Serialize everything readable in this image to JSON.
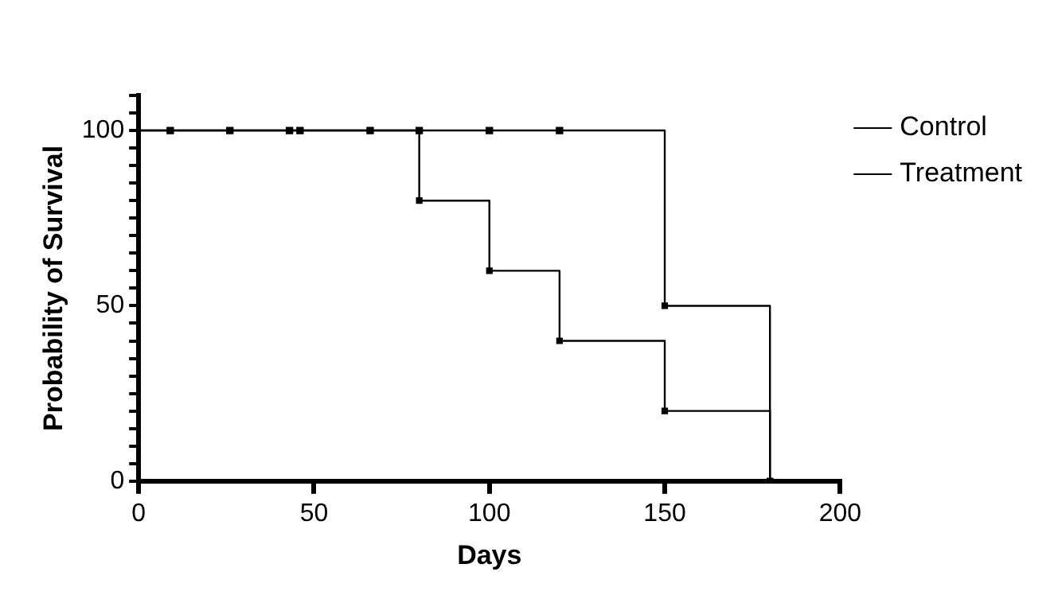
{
  "chart_data": {
    "type": "step",
    "xlabel": "Days",
    "ylabel": "Probability of Survival",
    "series": [
      {
        "name": "Control",
        "color": "#000000",
        "x": [
          0,
          150,
          180
        ],
        "values": [
          100,
          50,
          0
        ]
      },
      {
        "name": "Treatment",
        "color": "#000000",
        "x": [
          0,
          80,
          100,
          120,
          150,
          180
        ],
        "values": [
          100,
          80,
          60,
          40,
          20,
          0
        ]
      },
      {
        "type": "scatter",
        "color": "#000000",
        "x": [
          9,
          26,
          43,
          46,
          66,
          80,
          100,
          120
        ],
        "values": [
          100,
          100,
          100,
          100,
          100,
          100,
          100,
          100
        ]
      }
    ],
    "xlim": [
      0,
      200
    ],
    "xticks": [
      0,
      50,
      100,
      150,
      200
    ],
    "ylim": [
      0,
      110
    ],
    "yticks": [
      0,
      {
        "value": 5,
        "label": null
      },
      {
        "value": 10,
        "label": null
      },
      {
        "value": 15,
        "label": null
      },
      {
        "value": 20,
        "label": null
      },
      {
        "value": 25,
        "label": null
      },
      {
        "value": 30,
        "label": null
      },
      {
        "value": 35,
        "label": null
      },
      {
        "value": 40,
        "label": null
      },
      {
        "value": 45,
        "label": null
      },
      50,
      {
        "value": 55,
        "label": null
      },
      {
        "value": 60,
        "label": null
      },
      {
        "value": 65,
        "label": null
      },
      {
        "value": 70,
        "label": null
      },
      {
        "value": 75,
        "label": null
      },
      {
        "value": 80,
        "label": null
      },
      {
        "value": 85,
        "label": null
      },
      {
        "value": 90,
        "label": null
      },
      {
        "value": 95,
        "label": null
      },
      100,
      {
        "value": 105,
        "label": null
      },
      {
        "value": 110,
        "label": null
      }
    ],
    "grid": false,
    "legend": "top right",
    "marker": "square"
  }
}
